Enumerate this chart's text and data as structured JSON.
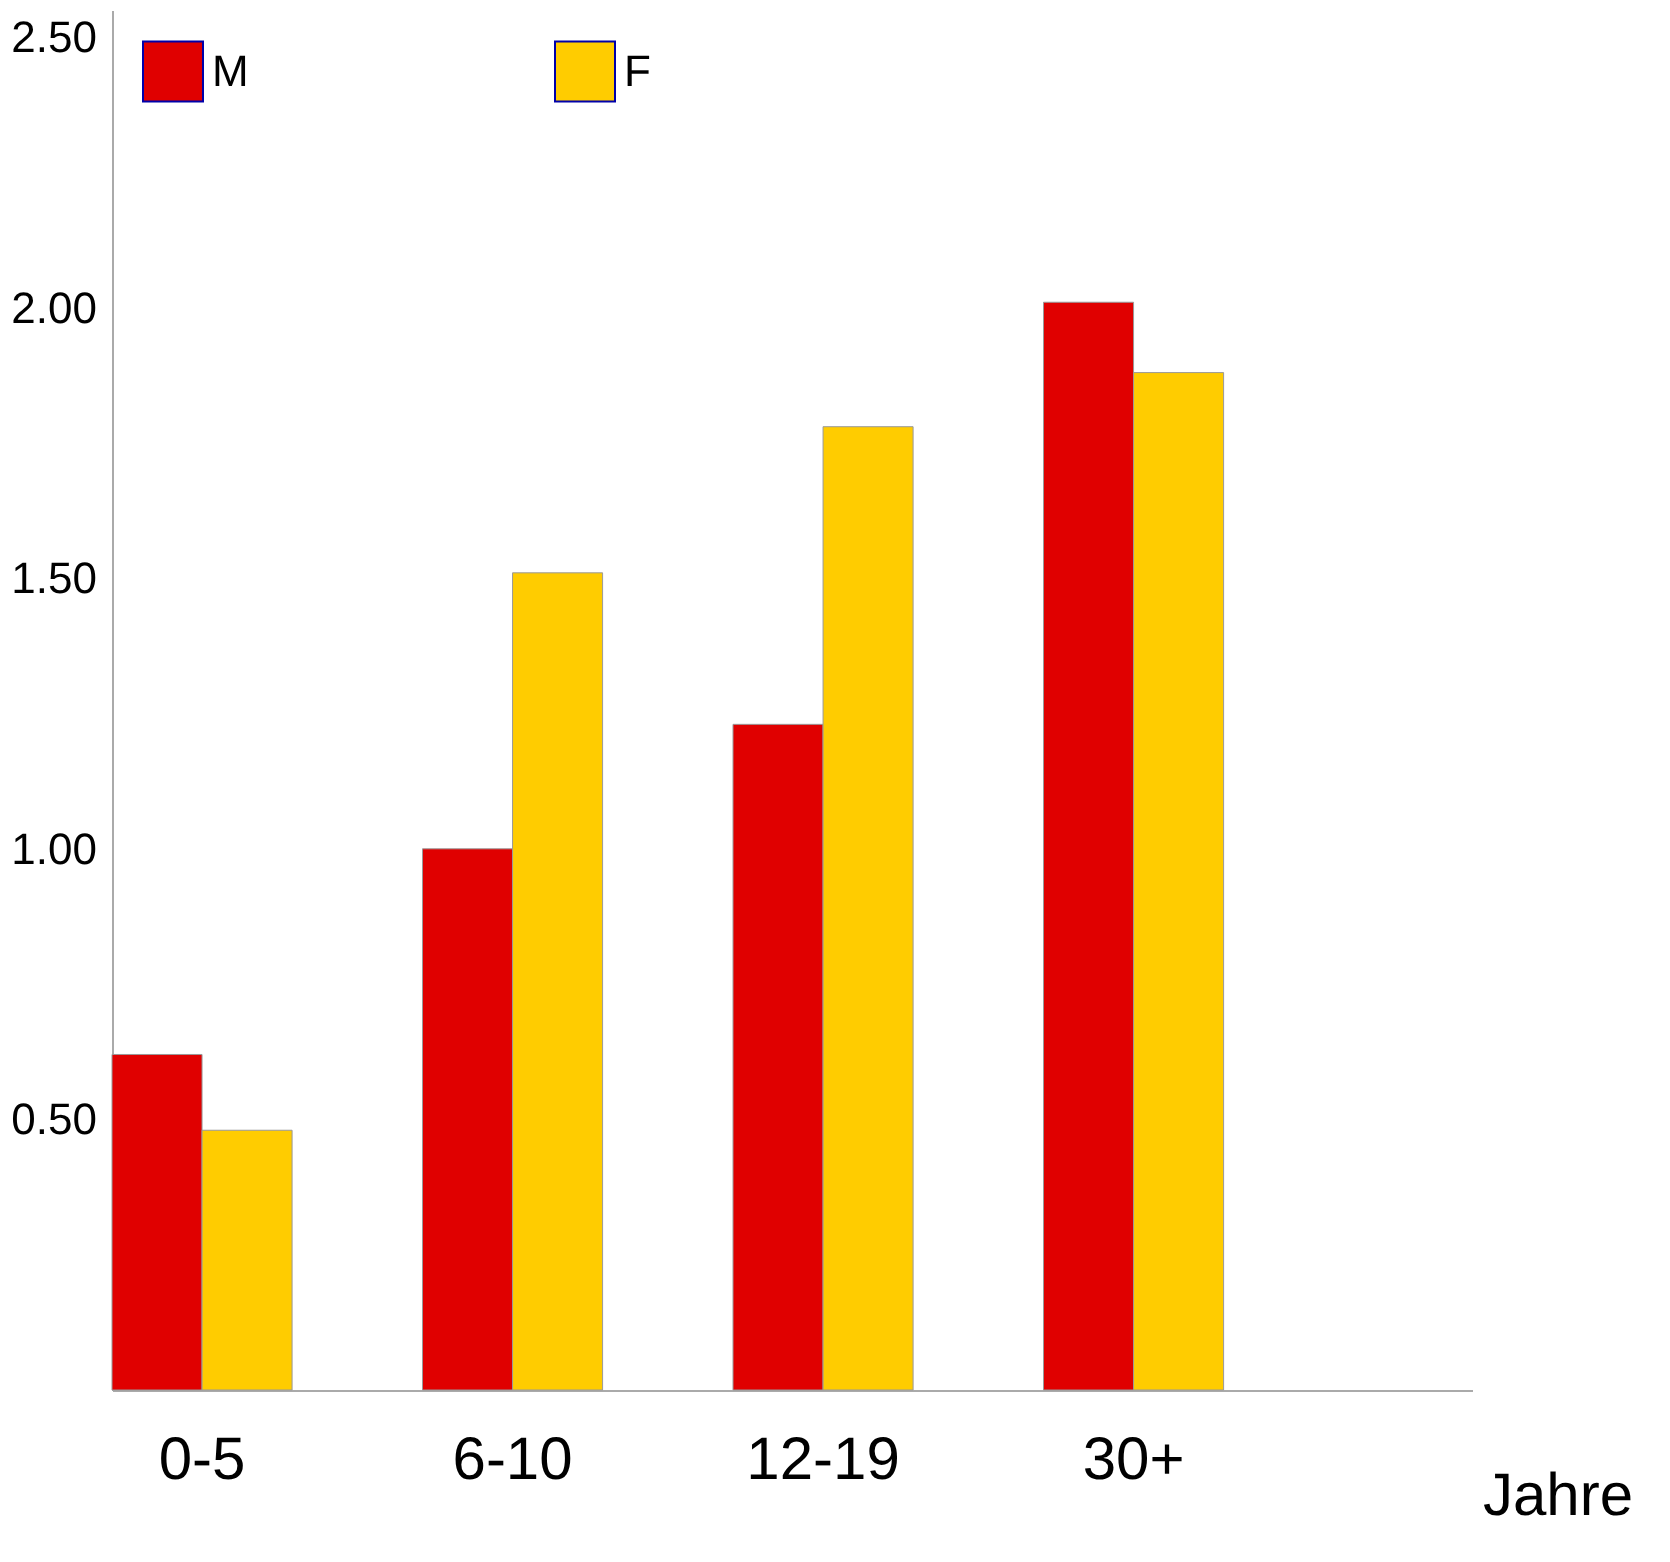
{
  "chart_data": {
    "type": "bar",
    "xlabel": "Jahre",
    "categories": [
      "0-5",
      "6-10",
      "12-19",
      "30+"
    ],
    "series": [
      {
        "name": "M",
        "color": "#e00000",
        "values": [
          0.62,
          1.0,
          1.23,
          2.01
        ]
      },
      {
        "name": "F",
        "color": "#ffcc00",
        "values": [
          0.48,
          1.51,
          1.78,
          1.88
        ]
      }
    ],
    "ylim": [
      0,
      2.55
    ],
    "yticks": [
      {
        "value": 0.5,
        "label": "0.50"
      },
      {
        "value": 1.0,
        "label": "1.00"
      },
      {
        "value": 1.5,
        "label": "1.50"
      },
      {
        "value": 2.0,
        "label": "2.00"
      },
      {
        "value": 2.5,
        "label": "2.50"
      }
    ],
    "grid": false,
    "legend": "top left"
  }
}
